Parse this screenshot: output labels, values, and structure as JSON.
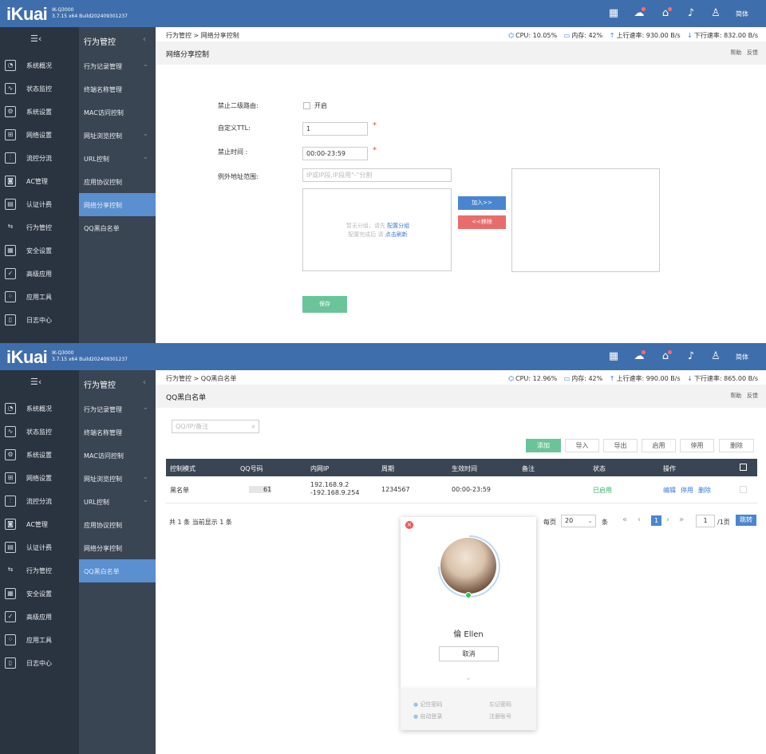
{
  "brand": {
    "logo": "iKuai",
    "model": "IK-Q3000",
    "version": "3.7.15 x64 Build202409301237",
    "lang": "简体"
  },
  "sidebar": {
    "items": [
      "系统概况",
      "状态监控",
      "系统设置",
      "网络设置",
      "流控分流",
      "AC管理",
      "认证计费",
      "行为管控",
      "安全设置",
      "高级应用",
      "应用工具",
      "日志中心"
    ],
    "sub_title": "行为管控"
  },
  "page1": {
    "submenu": [
      "行为记录管理",
      "终端名称管理",
      "MAC访问控制",
      "网址浏览控制",
      "URL控制",
      "应用协议控制",
      "网络分享控制",
      "QQ黑白名单"
    ],
    "breadcrumb": "行为管控 > 网络分享控制",
    "stats": {
      "cpu": "CPU: 10.05%",
      "mem": "内存: 42%",
      "up": "上行速率: 930.00 B/s",
      "down": "下行速率: 832.00 B/s"
    },
    "section_title": "网络分享控制",
    "help": "帮助",
    "feedback": "反馈",
    "form": {
      "deny_secondary_label": "禁止二级路由:",
      "deny_secondary_option": "开启",
      "ttl_label": "自定义TTL:",
      "ttl_value": "1",
      "time_label": "禁止时间 :",
      "time_value": "00:00-23:59",
      "except_label": "例外地址范围:",
      "except_placeholder": "IP或IP段,IP段用\"-\"分割",
      "empty_line1": "暂无分组，请先",
      "empty_link1": "配置分组",
      "empty_line2": "配置完成后 请",
      "empty_link2": "点击刷新",
      "add_btn": "加入>>",
      "remove_btn": "<<移除",
      "save_btn": "保存"
    }
  },
  "page2": {
    "submenu": [
      "行为记录管理",
      "终端名称管理",
      "MAC访问控制",
      "网址浏览控制",
      "URL控制",
      "应用协议控制",
      "网络分享控制",
      "QQ黑白名单"
    ],
    "breadcrumb": "行为管控 > QQ黑白名单",
    "stats": {
      "cpu": "CPU: 12.96%",
      "mem": "内存: 42%",
      "up": "上行速率: 990.00 B/s",
      "down": "下行速率: 865.00 B/s"
    },
    "section_title": "QQ黑白名单",
    "help": "帮助",
    "feedback": "反馈",
    "search_placeholder": "QQ/IP/备注",
    "toolbar": [
      "添加",
      "导入",
      "导出",
      "启用",
      "停用",
      "删除"
    ],
    "columns": [
      "控制模式",
      "QQ号码",
      "内网IP",
      "周期",
      "生效时间",
      "备注",
      "状态",
      "操作"
    ],
    "row": {
      "mode": "黑名单",
      "qq": "61",
      "ip1": "192.168.9.2",
      "ip2": "-192.168.9.254",
      "period": "1234567",
      "time": "00:00-23:59",
      "note": "",
      "status": "已启用",
      "ops": [
        "编辑",
        "停用",
        "删除"
      ]
    },
    "footer": "共 1 条 当前显示 1 条",
    "pager": {
      "per_page": "每页",
      "per_value": "20",
      "unit": "条",
      "current": "1",
      "goto_value": "1",
      "total": "/1页",
      "jump": "跳转"
    },
    "modal": {
      "name": "倫 Ellen",
      "cancel": "取消",
      "remember": "记住密码",
      "forgot": "忘记密码",
      "auto": "自动登录",
      "register": "注册账号"
    }
  },
  "colors": {
    "header": "#3f6eac",
    "sidebar": "#2a3441",
    "submenu": "#3a4553",
    "active": "#5a8fd0",
    "save": "#6ac49a",
    "add": "#4a86cf",
    "remove": "#e86c6c",
    "enabled": "#35b26b",
    "link": "#3a7bd5"
  }
}
